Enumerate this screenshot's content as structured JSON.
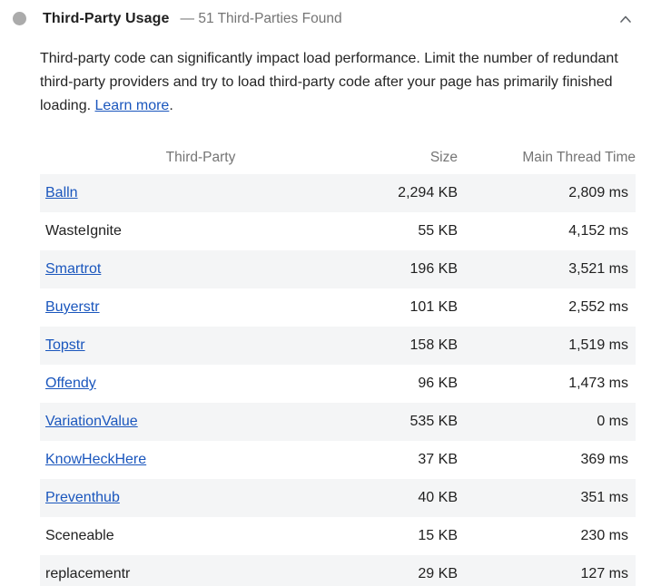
{
  "header": {
    "title": "Third-Party Usage",
    "subtitle": "— 51 Third-Parties Found",
    "icon": "neutral-gray-dot",
    "chevron_icon": "chevron-up-icon"
  },
  "description": {
    "text_before_link": "Third-party code can significantly impact load performance. Limit the number of redundant third-party providers and try to load third-party code after your page has primarily finished loading. ",
    "link_text": "Learn more",
    "text_after_link": "."
  },
  "table": {
    "columns": [
      {
        "label": "Third-Party",
        "align": "center"
      },
      {
        "label": "Size",
        "align": "right"
      },
      {
        "label": "Main Thread Time",
        "align": "right"
      }
    ],
    "rows": [
      {
        "name": "Balln",
        "is_link": true,
        "size": "2,294 KB",
        "main_thread_time": "2,809 ms"
      },
      {
        "name": "WasteIgnite",
        "is_link": false,
        "size": "55 KB",
        "main_thread_time": "4,152 ms"
      },
      {
        "name": "Smartrot",
        "is_link": true,
        "size": "196 KB",
        "main_thread_time": "3,521 ms"
      },
      {
        "name": "Buyerstr",
        "is_link": true,
        "size": "101 KB",
        "main_thread_time": "2,552 ms"
      },
      {
        "name": "Topstr",
        "is_link": true,
        "size": "158 KB",
        "main_thread_time": "1,519 ms"
      },
      {
        "name": "Offendy",
        "is_link": true,
        "size": "96 KB",
        "main_thread_time": "1,473 ms"
      },
      {
        "name": "VariationValue",
        "is_link": true,
        "size": "535 KB",
        "main_thread_time": "0 ms"
      },
      {
        "name": "KnowHeckHere",
        "is_link": true,
        "size": "37 KB",
        "main_thread_time": "369 ms"
      },
      {
        "name": "Preventhub",
        "is_link": true,
        "size": "40 KB",
        "main_thread_time": "351 ms"
      },
      {
        "name": "Sceneable",
        "is_link": false,
        "size": "15 KB",
        "main_thread_time": "230 ms"
      },
      {
        "name": "replacementr",
        "is_link": false,
        "size": "29 KB",
        "main_thread_time": "127 ms"
      }
    ]
  },
  "colors": {
    "link": "#1a56bd",
    "text": "#212121",
    "secondary_text": "#757575",
    "stripe_background": "#f4f5f6",
    "icon_gray": "#ababab"
  }
}
